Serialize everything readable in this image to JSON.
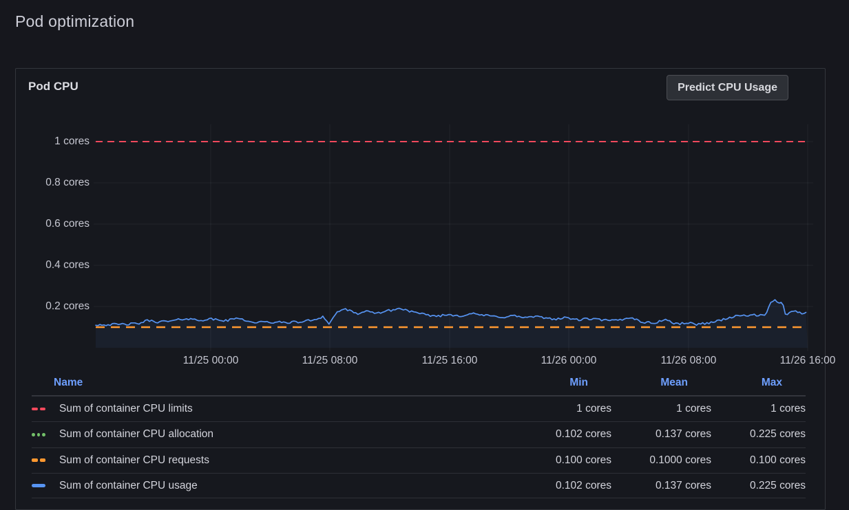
{
  "page": {
    "title": "Pod optimization"
  },
  "panel": {
    "title": "Pod CPU",
    "button_label": "Predict CPU Usage"
  },
  "colors": {
    "red": "#F2495C",
    "green": "#73BF69",
    "orange": "#FF9830",
    "blue": "#5794F2",
    "link_blue": "#6E9FFF",
    "grid": "rgba(204,212,224,0.07)"
  },
  "chart_data": {
    "type": "line",
    "title": "Pod CPU",
    "unit": "cores",
    "ylim": [
      0,
      1.083
    ],
    "grid": true,
    "legend_position": "bottom-table",
    "y_ticks": [
      {
        "label": "1 cores",
        "value": 1.0
      },
      {
        "label": "0.8 cores",
        "value": 0.8
      },
      {
        "label": "0.6 cores",
        "value": 0.6
      },
      {
        "label": "0.4 cores",
        "value": 0.4
      },
      {
        "label": "0.2 cores",
        "value": 0.2
      }
    ],
    "x_ticks": [
      "11/25 00:00",
      "11/25 08:00",
      "11/25 16:00",
      "11/26 00:00",
      "11/26 08:00",
      "11/26 16:00"
    ],
    "series": [
      {
        "name": "Sum of container CPU limits",
        "color": "#F2495C",
        "style": "dashed",
        "constant": 1.0,
        "stats": {
          "min": 1,
          "mean": 1,
          "max": 1
        }
      },
      {
        "name": "Sum of container CPU allocation",
        "color": "#73BF69",
        "style": "dotted",
        "coincides_with": "Sum of container CPU usage",
        "stats": {
          "min": 0.102,
          "mean": 0.137,
          "max": 0.225
        }
      },
      {
        "name": "Sum of container CPU requests",
        "color": "#FF9830",
        "style": "dashed",
        "constant": 0.1,
        "stats": {
          "min": 0.1,
          "mean": 0.1,
          "max": 0.1
        }
      },
      {
        "name": "Sum of container CPU usage",
        "color": "#5794F2",
        "style": "solid",
        "stats": {
          "min": 0.102,
          "mean": 0.137,
          "max": 0.225
        },
        "points": [
          [
            0.0,
            0.112
          ],
          [
            0.031,
            0.113
          ],
          [
            0.06,
            0.117
          ],
          [
            0.073,
            0.133
          ],
          [
            0.087,
            0.126
          ],
          [
            0.106,
            0.129
          ],
          [
            0.126,
            0.142
          ],
          [
            0.145,
            0.134
          ],
          [
            0.163,
            0.139
          ],
          [
            0.183,
            0.131
          ],
          [
            0.202,
            0.146
          ],
          [
            0.217,
            0.124
          ],
          [
            0.239,
            0.124
          ],
          [
            0.263,
            0.123
          ],
          [
            0.287,
            0.125
          ],
          [
            0.309,
            0.138
          ],
          [
            0.319,
            0.152
          ],
          [
            0.328,
            0.116
          ],
          [
            0.339,
            0.173
          ],
          [
            0.347,
            0.188
          ],
          [
            0.355,
            0.182
          ],
          [
            0.365,
            0.165
          ],
          [
            0.379,
            0.175
          ],
          [
            0.394,
            0.168
          ],
          [
            0.41,
            0.179
          ],
          [
            0.426,
            0.19
          ],
          [
            0.437,
            0.183
          ],
          [
            0.449,
            0.169
          ],
          [
            0.464,
            0.159
          ],
          [
            0.48,
            0.154
          ],
          [
            0.497,
            0.161
          ],
          [
            0.513,
            0.155
          ],
          [
            0.527,
            0.166
          ],
          [
            0.542,
            0.159
          ],
          [
            0.557,
            0.153
          ],
          [
            0.573,
            0.149
          ],
          [
            0.587,
            0.156
          ],
          [
            0.602,
            0.146
          ],
          [
            0.617,
            0.151
          ],
          [
            0.633,
            0.144
          ],
          [
            0.648,
            0.14
          ],
          [
            0.662,
            0.146
          ],
          [
            0.677,
            0.135
          ],
          [
            0.692,
            0.141
          ],
          [
            0.708,
            0.136
          ],
          [
            0.723,
            0.131
          ],
          [
            0.739,
            0.136
          ],
          [
            0.752,
            0.149
          ],
          [
            0.766,
            0.126
          ],
          [
            0.783,
            0.119
          ],
          [
            0.801,
            0.138
          ],
          [
            0.814,
            0.115
          ],
          [
            0.83,
            0.121
          ],
          [
            0.845,
            0.114
          ],
          [
            0.861,
            0.121
          ],
          [
            0.874,
            0.131
          ],
          [
            0.89,
            0.146
          ],
          [
            0.903,
            0.155
          ],
          [
            0.919,
            0.159
          ],
          [
            0.932,
            0.156
          ],
          [
            0.942,
            0.162
          ],
          [
            0.948,
            0.218
          ],
          [
            0.954,
            0.228
          ],
          [
            0.959,
            0.221
          ],
          [
            0.965,
            0.215
          ],
          [
            0.969,
            0.163
          ],
          [
            0.977,
            0.172
          ],
          [
            0.982,
            0.178
          ],
          [
            0.986,
            0.172
          ],
          [
            0.992,
            0.168
          ],
          [
            1.0,
            0.175
          ]
        ]
      }
    ]
  },
  "legend": {
    "columns": [
      "Name",
      "Min",
      "Mean",
      "Max"
    ],
    "rows": [
      {
        "name": "Sum of container CPU limits",
        "swatch": "dashes",
        "color": "#F2495C",
        "min": "1 cores",
        "mean": "1 cores",
        "max": "1 cores"
      },
      {
        "name": "Sum of container CPU allocation",
        "swatch": "dots",
        "color": "#73BF69",
        "min": "0.102 cores",
        "mean": "0.137 cores",
        "max": "0.225 cores"
      },
      {
        "name": "Sum of container CPU requests",
        "swatch": "dashes",
        "color": "#FF9830",
        "min": "0.100 cores",
        "mean": "0.1000 cores",
        "max": "0.100 cores"
      },
      {
        "name": "Sum of container CPU usage",
        "swatch": "solid",
        "color": "#5794F2",
        "min": "0.102 cores",
        "mean": "0.137 cores",
        "max": "0.225 cores"
      }
    ]
  }
}
